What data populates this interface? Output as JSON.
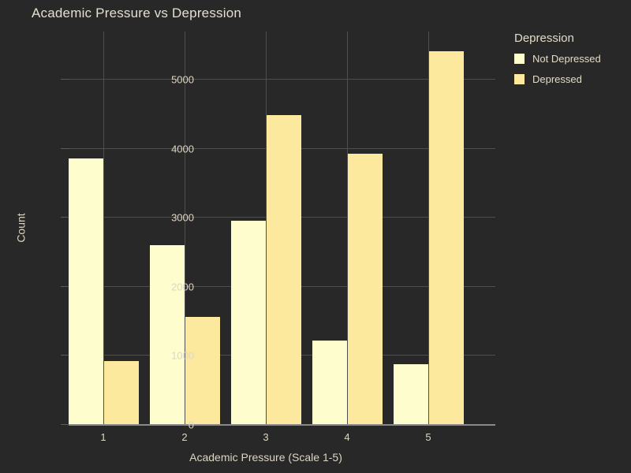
{
  "window": {
    "title": "Academic Pressure vs Depression"
  },
  "colors": {
    "background": "#282828",
    "gridline": "#4e4e4e",
    "zero_line": "#8a8a8a",
    "text": "#ded6c4",
    "title_text": "#e6dfd0",
    "not_depressed_bar": "#fdfdcd",
    "depressed_bar": "#fde99d"
  },
  "chart_data": {
    "type": "bar",
    "title": "Academic Pressure vs Depression",
    "xlabel": "Academic Pressure (Scale 1-5)",
    "ylabel": "Count",
    "categories": [
      "1",
      "2",
      "3",
      "4",
      "5"
    ],
    "series": [
      {
        "name": "Not Depressed",
        "color": "#fdfdcd",
        "values": [
          3860,
          2600,
          2960,
          1220,
          875
        ]
      },
      {
        "name": "Depressed",
        "color": "#fde99d",
        "values": [
          930,
          1560,
          4490,
          3930,
          5420
        ]
      }
    ],
    "ylim": [
      0,
      5700
    ],
    "yticks": [
      0,
      1000,
      2000,
      3000,
      4000,
      5000
    ],
    "grid": true,
    "legend_title": "Depression",
    "legend_position": "top-right"
  }
}
